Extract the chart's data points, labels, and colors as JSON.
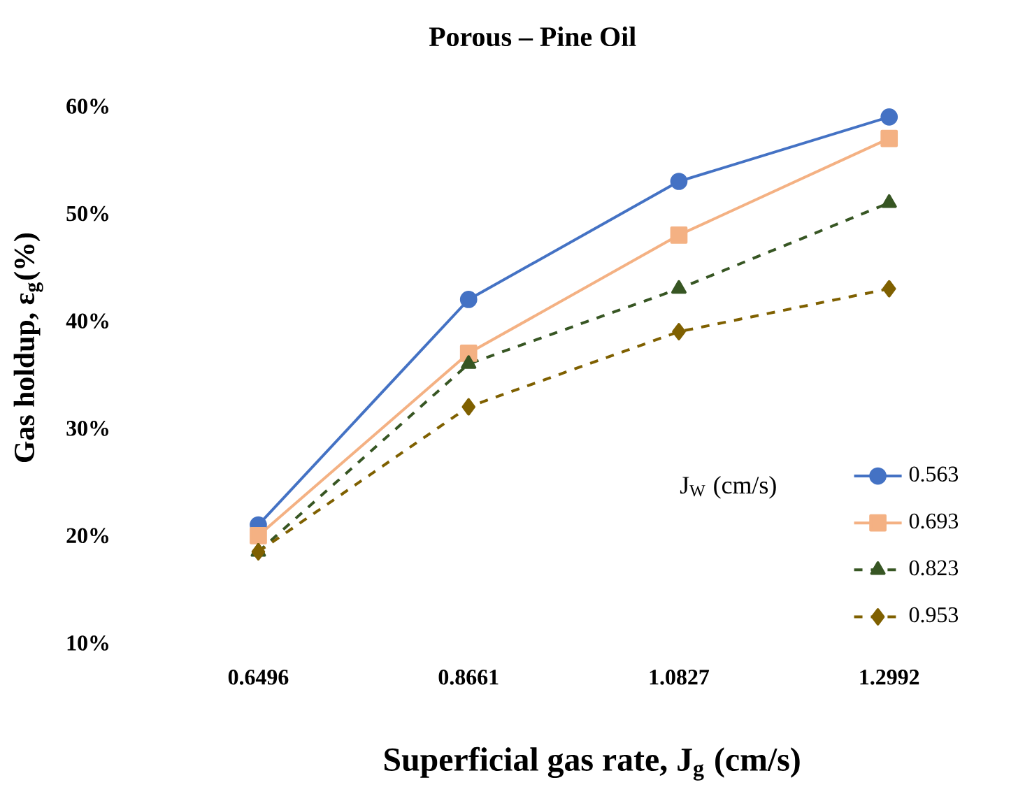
{
  "chart_data": {
    "type": "line",
    "title": "Porous – Pine Oil",
    "xlabel": "Superficial gas rate, J$_{g}$ (cm/s)",
    "ylabel": "Gas holdup, ε$_{g}$(%)",
    "legend_title": "J$_{W}$ (cm/s)",
    "categories": [
      "0.6496",
      "0.8661",
      "1.0827",
      "1.2992"
    ],
    "ylim": [
      10,
      60
    ],
    "yticks": [
      {
        "value": 10,
        "label": "10%"
      },
      {
        "value": 20,
        "label": "20%"
      },
      {
        "value": 30,
        "label": "30%"
      },
      {
        "value": 40,
        "label": "40%"
      },
      {
        "value": 50,
        "label": "50%"
      },
      {
        "value": 60,
        "label": "60%"
      }
    ],
    "legend": "right",
    "series": [
      {
        "name": "0.563",
        "color": "#4472c4",
        "marker": "circle",
        "line_style": "solid",
        "values": [
          21,
          42,
          53,
          59
        ]
      },
      {
        "name": "0.693",
        "color": "#f4b183",
        "marker": "square",
        "line_style": "solid",
        "values": [
          20,
          37,
          48,
          57
        ]
      },
      {
        "name": "0.823",
        "color": "#375623",
        "marker": "triangle",
        "line_style": "dashed",
        "values": [
          18.5,
          36,
          43,
          51
        ]
      },
      {
        "name": "0.953",
        "color": "#7f6000",
        "marker": "diamond",
        "line_style": "dashed",
        "values": [
          18.5,
          32,
          39,
          43
        ]
      }
    ]
  }
}
